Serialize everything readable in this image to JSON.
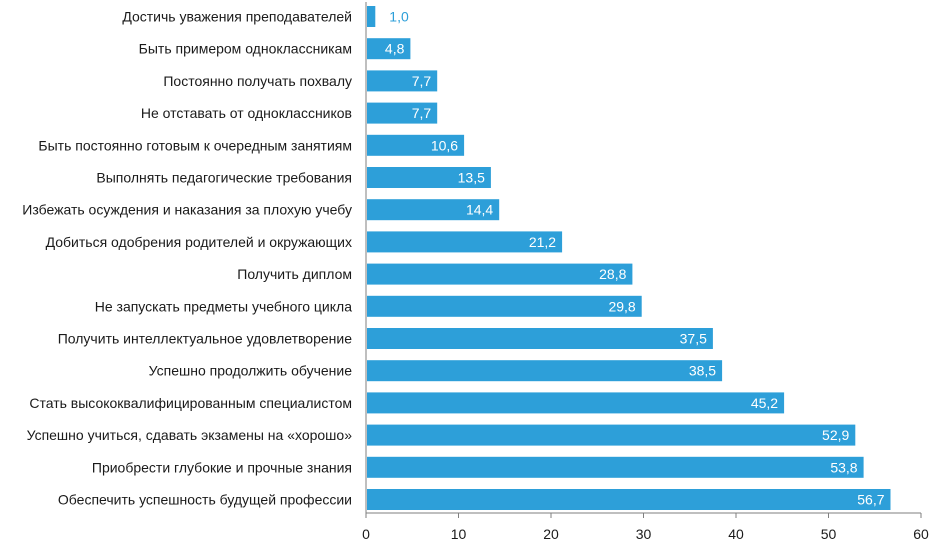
{
  "chart_data": {
    "type": "bar",
    "orientation": "horizontal",
    "title": "",
    "xlabel": "",
    "ylabel": "",
    "xlim": [
      0,
      60
    ],
    "xticks": [
      0,
      10,
      20,
      30,
      40,
      50,
      60
    ],
    "grid": false,
    "bar_color": "#2d9fd9",
    "categories": [
      "Достичь уважения преподавателей",
      "Быть примером одноклассникам",
      "Постоянно получать похвалу",
      "Не отставать от одноклассников",
      "Быть постоянно готовым к очередным занятиям",
      "Выполнять педагогические требования",
      "Избежать осуждения и наказания за плохую учебу",
      "Добиться одобрения родителей и окружающих",
      "Получить диплом",
      "Не запускать предметы учебного цикла",
      "Получить интеллектуальное удовлетворение",
      "Успешно продолжить обучение",
      "Стать высококвалифицированным специалистом",
      "Успешно учиться, сдавать экзамены на «хорошо»",
      "Приобрести глубокие и прочные знания",
      "Обеспечить успешность будущей профессии"
    ],
    "values": [
      1.0,
      4.8,
      7.7,
      7.7,
      10.6,
      13.5,
      14.4,
      21.2,
      28.8,
      29.8,
      37.5,
      38.5,
      45.2,
      52.9,
      53.8,
      56.7
    ],
    "value_labels": [
      "1,0",
      "4,8",
      "7,7",
      "7,7",
      "10,6",
      "13,5",
      "14,4",
      "21,2",
      "28,8",
      "29,8",
      "37,5",
      "38,5",
      "45,2",
      "52,9",
      "53,8",
      "56,7"
    ],
    "outside_label_color": "#2d9fd9",
    "inside_label_color": "#ffffff"
  }
}
